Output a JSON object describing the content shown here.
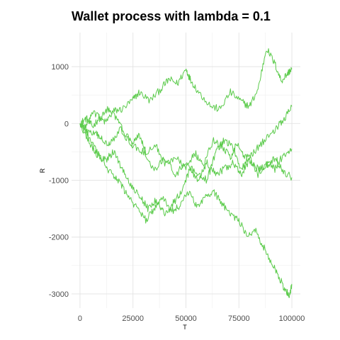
{
  "chart_data": {
    "type": "line",
    "title": "Wallet process with lambda =  0.1",
    "xlabel": "T",
    "ylabel": "R",
    "xlim": [
      -4000,
      104000
    ],
    "ylim": [
      -3250,
      1600
    ],
    "x_ticks": [
      0,
      25000,
      50000,
      75000,
      100000
    ],
    "x_tick_labels": [
      "0",
      "25000",
      "50000",
      "75000",
      "100000"
    ],
    "y_ticks": [
      -3000,
      -2000,
      -1000,
      0,
      1000
    ],
    "y_tick_labels": [
      "-3000",
      "-2000",
      "-1000",
      "0",
      "1000"
    ],
    "grid": true,
    "line_color": "#5BCB4B",
    "series": [
      {
        "x": [
          0,
          3000,
          6000,
          9000,
          12000,
          16000,
          20000,
          25000,
          28000,
          33000,
          38000,
          42000,
          46000,
          50000,
          52000,
          56000,
          62000,
          66000,
          71000,
          76000,
          80000,
          84000,
          88000,
          92000,
          95000,
          98000,
          100000
        ],
        "values": [
          0,
          90,
          -60,
          100,
          20,
          220,
          250,
          420,
          550,
          400,
          600,
          780,
          700,
          960,
          780,
          550,
          300,
          250,
          550,
          390,
          300,
          600,
          1330,
          1050,
          750,
          880,
          970
        ]
      },
      {
        "x": [
          0,
          4000,
          8000,
          11000,
          14000,
          19000,
          24000,
          28000,
          31000,
          36000,
          40000,
          45000,
          50000,
          54000,
          58000,
          63000,
          67000,
          71000,
          74000,
          78000,
          82000,
          87000,
          92000,
          96000,
          100000
        ],
        "values": [
          0,
          -150,
          -200,
          -300,
          -350,
          -100,
          -350,
          -200,
          -500,
          -400,
          -700,
          -600,
          -800,
          -500,
          -750,
          -300,
          -400,
          -600,
          -350,
          -600,
          -500,
          -300,
          -100,
          50,
          300
        ]
      },
      {
        "x": [
          0,
          3000,
          6000,
          10000,
          13000,
          17000,
          21000,
          25000,
          30000,
          35000,
          40000,
          45000,
          50000,
          55000,
          60000,
          64000,
          68000,
          72000,
          76000,
          80000,
          84000,
          88000,
          92000,
          96000,
          100000
        ],
        "values": [
          0,
          -50,
          200,
          100,
          270,
          100,
          -150,
          -400,
          -500,
          -850,
          -600,
          -900,
          -700,
          -900,
          -1000,
          -500,
          -300,
          -400,
          -800,
          -600,
          -900,
          -700,
          -800,
          -550,
          -450
        ]
      },
      {
        "x": [
          0,
          4000,
          8000,
          12000,
          16000,
          20000,
          24000,
          28000,
          32000,
          36000,
          40000,
          44000,
          48000,
          52000,
          56000,
          60000,
          64000,
          68000,
          72000,
          76000,
          80000,
          84000,
          88000,
          92000,
          96000,
          100000
        ],
        "values": [
          0,
          -300,
          -550,
          -650,
          -500,
          -800,
          -1100,
          -1250,
          -1500,
          -1350,
          -1600,
          -1400,
          -1200,
          -800,
          -1000,
          -700,
          -900,
          -800,
          -700,
          -900,
          -650,
          -800,
          -750,
          -600,
          -850,
          -950
        ]
      },
      {
        "x": [
          0,
          3000,
          7000,
          11000,
          15000,
          19000,
          23000,
          27000,
          31000,
          35000,
          39000,
          43000,
          47000,
          51000,
          55000,
          59000,
          63000,
          67000,
          71000,
          75000,
          79000,
          83000,
          87000,
          91000,
          94000,
          97000,
          99000,
          100000
        ],
        "values": [
          0,
          -150,
          -450,
          -700,
          -900,
          -1050,
          -1300,
          -1500,
          -1700,
          -1500,
          -1300,
          -1550,
          -1450,
          -1200,
          -1450,
          -1300,
          -1200,
          -1400,
          -1600,
          -1700,
          -2000,
          -1900,
          -2200,
          -2500,
          -2700,
          -2950,
          -3020,
          -2850
        ]
      }
    ]
  }
}
